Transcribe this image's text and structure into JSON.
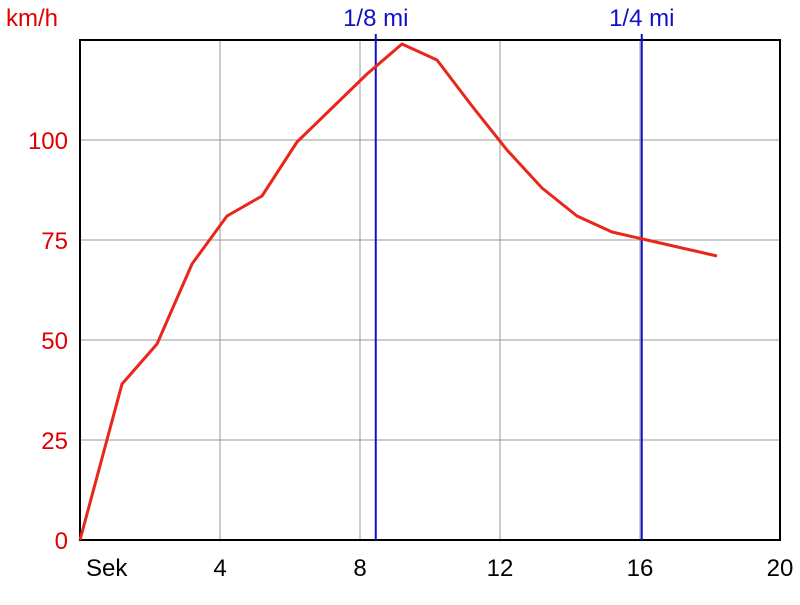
{
  "chart_data": {
    "type": "line",
    "y_label": "km/h",
    "x_label": "Sek",
    "x": [
      0,
      1.2,
      2.2,
      3.2,
      4.2,
      5.2,
      6.2,
      7.2,
      8.2,
      9.2,
      10.2,
      11.2,
      12.2,
      13.2,
      14.2,
      15.2,
      16.2,
      17.2,
      18.2
    ],
    "series": [
      {
        "name": "km/h",
        "color": "#e8261a",
        "values": [
          0,
          39,
          49,
          69,
          81,
          86,
          99.5,
          108,
          116.5,
          124,
          120,
          108.5,
          97.5,
          88,
          81,
          77,
          75,
          73,
          71
        ]
      }
    ],
    "xlim": [
      0,
      20
    ],
    "xticks": [
      4,
      8,
      12,
      16,
      20
    ],
    "ylim": [
      0,
      125
    ],
    "yticks": [
      0,
      25,
      50,
      75,
      100
    ],
    "grid": true,
    "markers": [
      {
        "label": "1/8 mi",
        "x": 8.45,
        "color": "#1010c8"
      },
      {
        "label": "1/4 mi",
        "x": 16.05,
        "color": "#1010c8"
      }
    ],
    "axis_label_color": "#e00000"
  }
}
